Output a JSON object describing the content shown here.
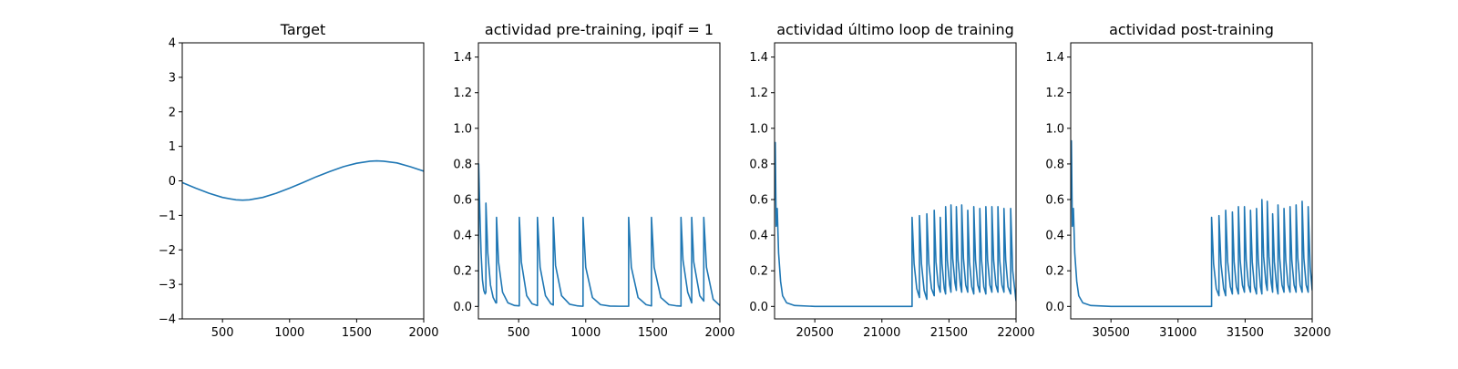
{
  "colors": {
    "line": "#1f77b4",
    "axes": "#000000",
    "background": "#ffffff"
  },
  "chart_data": [
    {
      "type": "line",
      "title": "Target",
      "xlabel": "",
      "ylabel": "",
      "xlim": [
        200,
        2000
      ],
      "ylim": [
        -4,
        4
      ],
      "xticks": [
        500,
        1000,
        1500,
        2000
      ],
      "yticks": [
        -4,
        -3,
        -2,
        -1,
        0,
        1,
        2,
        3,
        4
      ],
      "grid": false,
      "series": [
        {
          "x": [
            200,
            300,
            400,
            500,
            600,
            650,
            700,
            800,
            900,
            1000,
            1100,
            1200,
            1300,
            1400,
            1500,
            1600,
            1650,
            1700,
            1800,
            1900,
            2000
          ],
          "y": [
            -0.05,
            -0.21,
            -0.36,
            -0.48,
            -0.55,
            -0.56,
            -0.55,
            -0.48,
            -0.36,
            -0.21,
            -0.05,
            0.12,
            0.27,
            0.41,
            0.51,
            0.57,
            0.58,
            0.57,
            0.52,
            0.41,
            0.28
          ]
        }
      ]
    },
    {
      "type": "line",
      "title": "actividad pre-training, ipqif = 1",
      "xlabel": "",
      "ylabel": "",
      "xlim": [
        200,
        2000
      ],
      "ylim": [
        -0.07,
        1.48
      ],
      "xticks": [
        500,
        1000,
        1500,
        2000
      ],
      "yticks": [
        0.0,
        0.2,
        0.4,
        0.6,
        0.8,
        1.0,
        1.2,
        1.4
      ],
      "grid": false,
      "series": [
        {
          "x": [
            200,
            202,
            210,
            220,
            230,
            240,
            250,
            256,
            256,
            270,
            290,
            310,
            330,
            335,
            335,
            350,
            380,
            420,
            470,
            505,
            505,
            520,
            560,
            600,
            640,
            640,
            660,
            700,
            740,
            758,
            758,
            775,
            820,
            880,
            940,
            980,
            980,
            1000,
            1050,
            1110,
            1180,
            1250,
            1320,
            1320,
            1340,
            1390,
            1450,
            1490,
            1490,
            1510,
            1560,
            1620,
            1680,
            1710,
            1710,
            1725,
            1760,
            1790,
            1790,
            1805,
            1850,
            1880,
            1880,
            1900,
            1950,
            2000
          ],
          "y": [
            0.0,
            0.8,
            0.55,
            0.3,
            0.15,
            0.09,
            0.07,
            0.08,
            0.58,
            0.3,
            0.12,
            0.05,
            0.02,
            0.02,
            0.5,
            0.25,
            0.08,
            0.02,
            0.005,
            0.003,
            0.5,
            0.25,
            0.06,
            0.015,
            0.005,
            0.5,
            0.22,
            0.06,
            0.015,
            0.008,
            0.5,
            0.23,
            0.06,
            0.012,
            0.003,
            0.001,
            0.5,
            0.22,
            0.05,
            0.01,
            0.002,
            0.001,
            0.001,
            0.5,
            0.22,
            0.05,
            0.01,
            0.003,
            0.5,
            0.22,
            0.05,
            0.01,
            0.003,
            0.002,
            0.5,
            0.26,
            0.08,
            0.02,
            0.5,
            0.25,
            0.06,
            0.03,
            0.5,
            0.22,
            0.04,
            0.005
          ]
        }
      ]
    },
    {
      "type": "line",
      "title": "actividad último loop de training",
      "xlabel": "",
      "ylabel": "",
      "xlim": [
        20200,
        22000
      ],
      "ylim": [
        -0.07,
        1.48
      ],
      "xticks": [
        20500,
        21000,
        21500,
        22000
      ],
      "yticks": [
        0.0,
        0.2,
        0.4,
        0.6,
        0.8,
        1.0,
        1.2,
        1.4
      ],
      "grid": false,
      "series": [
        {
          "x": [
            20200,
            20205,
            20212,
            20220,
            20230,
            20245,
            20260,
            20290,
            20350,
            20500,
            20800,
            21100,
            21225,
            21225,
            21240,
            21260,
            21280,
            21280,
            21295,
            21315,
            21335,
            21335,
            21350,
            21370,
            21390,
            21390,
            21403,
            21420,
            21435,
            21435,
            21448,
            21465,
            21475,
            21475,
            21488,
            21505,
            21515,
            21515,
            21528,
            21545,
            21555,
            21555,
            21568,
            21585,
            21595,
            21595,
            21608,
            21625,
            21640,
            21640,
            21653,
            21670,
            21685,
            21685,
            21698,
            21715,
            21730,
            21730,
            21743,
            21760,
            21775,
            21775,
            21788,
            21805,
            21820,
            21820,
            21833,
            21850,
            21865,
            21865,
            21878,
            21895,
            21910,
            21910,
            21923,
            21940,
            21960,
            21960,
            21975,
            22000
          ],
          "y": [
            0.6,
            0.92,
            0.45,
            0.55,
            0.3,
            0.14,
            0.06,
            0.02,
            0.005,
            0.0,
            0.0,
            0.0,
            0.0,
            0.5,
            0.24,
            0.1,
            0.05,
            0.51,
            0.24,
            0.09,
            0.04,
            0.52,
            0.24,
            0.1,
            0.06,
            0.54,
            0.25,
            0.12,
            0.08,
            0.5,
            0.24,
            0.1,
            0.07,
            0.56,
            0.26,
            0.12,
            0.08,
            0.57,
            0.27,
            0.13,
            0.09,
            0.56,
            0.26,
            0.12,
            0.08,
            0.57,
            0.27,
            0.12,
            0.08,
            0.54,
            0.25,
            0.11,
            0.07,
            0.56,
            0.26,
            0.12,
            0.08,
            0.55,
            0.26,
            0.11,
            0.07,
            0.56,
            0.26,
            0.12,
            0.08,
            0.56,
            0.26,
            0.12,
            0.08,
            0.56,
            0.26,
            0.12,
            0.08,
            0.55,
            0.26,
            0.11,
            0.07,
            0.55,
            0.2,
            0.03
          ]
        }
      ]
    },
    {
      "type": "line",
      "title": "actividad post-training",
      "xlabel": "",
      "ylabel": "",
      "xlim": [
        30200,
        32000
      ],
      "ylim": [
        -0.07,
        1.48
      ],
      "xticks": [
        30500,
        31000,
        31500,
        32000
      ],
      "yticks": [
        0.0,
        0.2,
        0.4,
        0.6,
        0.8,
        1.0,
        1.2,
        1.4
      ],
      "grid": false,
      "series": [
        {
          "x": [
            30200,
            30205,
            30212,
            30220,
            30230,
            30245,
            30260,
            30290,
            30350,
            30500,
            30800,
            31100,
            31250,
            31250,
            31265,
            31285,
            31305,
            31305,
            31320,
            31340,
            31355,
            31355,
            31370,
            31390,
            31405,
            31405,
            31418,
            31435,
            31450,
            31450,
            31463,
            31480,
            31495,
            31495,
            31508,
            31525,
            31540,
            31540,
            31553,
            31570,
            31585,
            31585,
            31598,
            31615,
            31625,
            31625,
            31638,
            31655,
            31665,
            31665,
            31678,
            31695,
            31705,
            31705,
            31718,
            31735,
            31745,
            31745,
            31758,
            31775,
            31790,
            31790,
            31803,
            31820,
            31835,
            31835,
            31848,
            31865,
            31880,
            31880,
            31893,
            31910,
            31925,
            31925,
            31938,
            31955,
            31970,
            31970,
            31985,
            32000
          ],
          "y": [
            0.6,
            0.93,
            0.45,
            0.55,
            0.3,
            0.14,
            0.06,
            0.02,
            0.005,
            0.0,
            0.0,
            0.0,
            0.0,
            0.5,
            0.24,
            0.1,
            0.06,
            0.51,
            0.24,
            0.1,
            0.06,
            0.54,
            0.25,
            0.11,
            0.07,
            0.53,
            0.25,
            0.11,
            0.07,
            0.56,
            0.26,
            0.12,
            0.08,
            0.56,
            0.26,
            0.12,
            0.08,
            0.54,
            0.25,
            0.11,
            0.07,
            0.55,
            0.26,
            0.11,
            0.07,
            0.6,
            0.28,
            0.13,
            0.09,
            0.59,
            0.28,
            0.13,
            0.08,
            0.52,
            0.25,
            0.11,
            0.07,
            0.57,
            0.27,
            0.12,
            0.08,
            0.55,
            0.26,
            0.12,
            0.08,
            0.56,
            0.26,
            0.12,
            0.08,
            0.57,
            0.27,
            0.12,
            0.08,
            0.59,
            0.27,
            0.12,
            0.08,
            0.56,
            0.22,
            0.09
          ]
        }
      ]
    }
  ]
}
